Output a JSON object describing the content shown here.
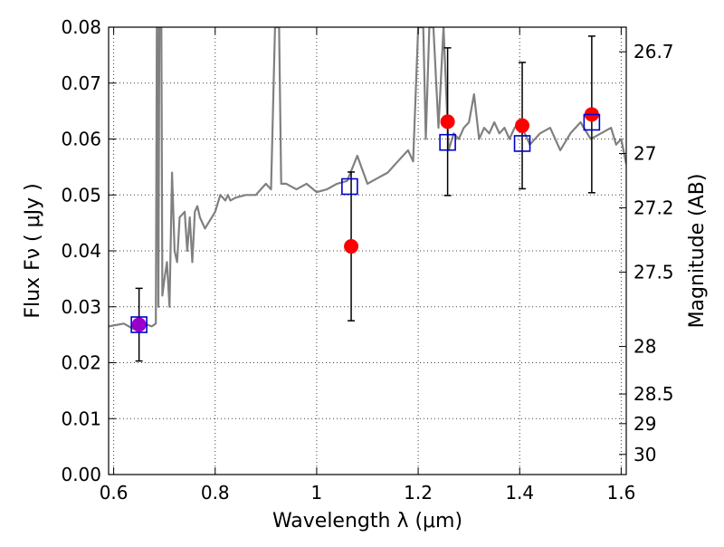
{
  "chart_data": {
    "type": "scatter",
    "title": "",
    "xlabel": "Wavelength  λ (μm)",
    "ylabel": "Flux  Fν  ( μJy )",
    "ylabel_right": "Magnitude (AB)",
    "xlim": [
      0.59,
      1.61
    ],
    "ylim": [
      0.0,
      0.08
    ],
    "grid": true,
    "x_ticks": [
      0.6,
      0.8,
      1.0,
      1.2,
      1.4,
      1.6
    ],
    "x_tick_labels": [
      "0.6",
      "0.8",
      "1",
      "1.2",
      "1.4",
      "1.6"
    ],
    "y_ticks": [
      0.0,
      0.01,
      0.02,
      0.03,
      0.04,
      0.05,
      0.06,
      0.07,
      0.08
    ],
    "y_tick_labels": [
      "0.00",
      "0.01",
      "0.02",
      "0.03",
      "0.04",
      "0.05",
      "0.06",
      "0.07",
      "0.08"
    ],
    "right_ticks": [
      {
        "label": "26.7",
        "flux": 0.0756
      },
      {
        "label": "27",
        "flux": 0.0574
      },
      {
        "label": "27.2",
        "flux": 0.0477
      },
      {
        "label": "27.5",
        "flux": 0.0362
      },
      {
        "label": "28",
        "flux": 0.0229
      },
      {
        "label": "28.5",
        "flux": 0.0144
      },
      {
        "label": "29",
        "flux": 0.0091
      },
      {
        "label": "30",
        "flux": 0.0036
      }
    ],
    "colors": {
      "model": "#808080",
      "observed": "#ff0000",
      "model_photometry": "#0000cc",
      "errorbar": "#000000",
      "overlap": "#9900cc"
    },
    "series": [
      {
        "kind": "line",
        "x": [
          0.59,
          0.62,
          0.64,
          0.66,
          0.675,
          0.683,
          0.685,
          0.686,
          0.688,
          0.69,
          0.694,
          0.696,
          0.7,
          0.705,
          0.71,
          0.715,
          0.72,
          0.725,
          0.73,
          0.74,
          0.745,
          0.75,
          0.755,
          0.76,
          0.765,
          0.77,
          0.78,
          0.8,
          0.81,
          0.82,
          0.825,
          0.83,
          0.84,
          0.86,
          0.88,
          0.9,
          0.91,
          0.918,
          0.922,
          0.926,
          0.93,
          0.94,
          0.96,
          0.98,
          1.0,
          1.02,
          1.04,
          1.06,
          1.08,
          1.1,
          1.12,
          1.14,
          1.16,
          1.18,
          1.19,
          1.2,
          1.21,
          1.215,
          1.222,
          1.23,
          1.24,
          1.25,
          1.26,
          1.27,
          1.28,
          1.29,
          1.3,
          1.31,
          1.32,
          1.33,
          1.34,
          1.35,
          1.36,
          1.37,
          1.38,
          1.39,
          1.4,
          1.42,
          1.44,
          1.46,
          1.48,
          1.5,
          1.52,
          1.54,
          1.56,
          1.58,
          1.59,
          1.6,
          1.61
        ],
        "y": [
          0.0265,
          0.027,
          0.026,
          0.027,
          0.0265,
          0.027,
          0.08,
          0.08,
          0.03,
          0.08,
          0.08,
          0.032,
          0.035,
          0.038,
          0.03,
          0.054,
          0.04,
          0.038,
          0.046,
          0.047,
          0.04,
          0.046,
          0.038,
          0.047,
          0.048,
          0.046,
          0.044,
          0.047,
          0.05,
          0.049,
          0.05,
          0.049,
          0.0495,
          0.05,
          0.05,
          0.052,
          0.051,
          0.08,
          0.08,
          0.08,
          0.052,
          0.052,
          0.051,
          0.052,
          0.0505,
          0.051,
          0.052,
          0.0525,
          0.057,
          0.052,
          0.053,
          0.054,
          0.056,
          0.058,
          0.056,
          0.08,
          0.08,
          0.06,
          0.08,
          0.08,
          0.062,
          0.08,
          0.058,
          0.061,
          0.06,
          0.062,
          0.063,
          0.068,
          0.06,
          0.062,
          0.061,
          0.063,
          0.061,
          0.062,
          0.06,
          0.062,
          0.063,
          0.059,
          0.061,
          0.062,
          0.058,
          0.061,
          0.063,
          0.06,
          0.061,
          0.062,
          0.059,
          0.06,
          0.0555
        ]
      },
      {
        "kind": "model_photometry",
        "x": [
          0.65,
          1.065,
          1.258,
          1.405,
          1.542
        ],
        "y": [
          0.0268,
          0.0515,
          0.0594,
          0.0592,
          0.063
        ]
      },
      {
        "kind": "observed",
        "x": [
          0.65,
          1.068,
          1.258,
          1.405,
          1.542
        ],
        "y": [
          0.0268,
          0.0408,
          0.0631,
          0.0624,
          0.0644
        ],
        "yerr": [
          0.0065,
          0.0133,
          0.0132,
          0.0113,
          0.014
        ]
      }
    ]
  }
}
